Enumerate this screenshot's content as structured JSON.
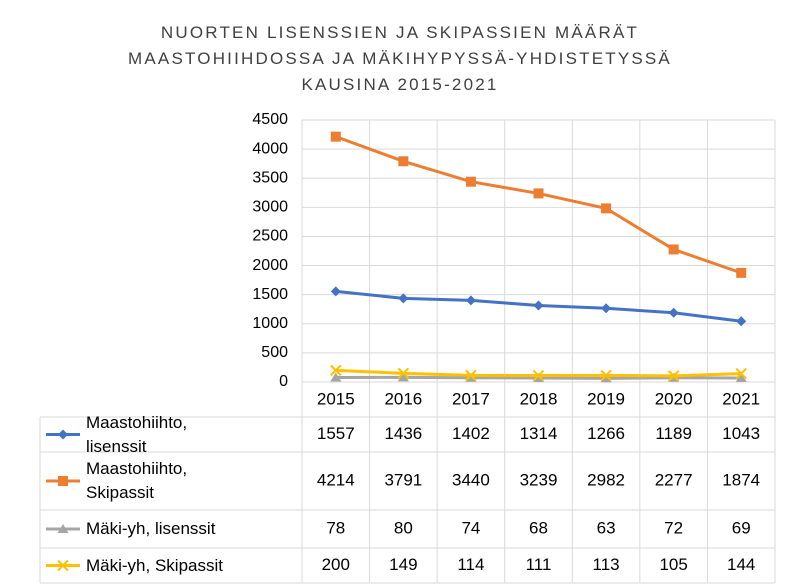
{
  "chart_data": {
    "type": "line",
    "title": "NUORTEN LISENSSIEN JA SKIPASSIEN MÄÄRÄT MAASTOHIIHDOSSA JA MÄKIHYPYSSÄ-YHDISTETYSSÄ KAUSINA 2015-2021",
    "categories": [
      "2015",
      "2016",
      "2017",
      "2018",
      "2019",
      "2020",
      "2021"
    ],
    "series": [
      {
        "name": "Maastohiihto, lisenssit",
        "color": "#4472c4",
        "marker": "diamond",
        "values": [
          1557,
          1436,
          1402,
          1314,
          1266,
          1189,
          1043
        ]
      },
      {
        "name": "Maastohiihto, Skipassit",
        "color": "#ed7d31",
        "marker": "square",
        "values": [
          4214,
          3791,
          3440,
          3239,
          2982,
          2277,
          1874
        ]
      },
      {
        "name": "Mäki-yh, lisenssit",
        "color": "#a5a5a5",
        "marker": "triangle",
        "values": [
          78,
          80,
          74,
          68,
          63,
          72,
          69
        ]
      },
      {
        "name": "Mäki-yh, Skipassit",
        "color": "#ffc000",
        "marker": "x",
        "values": [
          200,
          149,
          114,
          111,
          113,
          105,
          144
        ]
      }
    ],
    "ylim": [
      0,
      4500
    ],
    "yticks": [
      0,
      500,
      1000,
      1500,
      2000,
      2500,
      3000,
      3500,
      4000,
      4500
    ],
    "grid": true
  }
}
